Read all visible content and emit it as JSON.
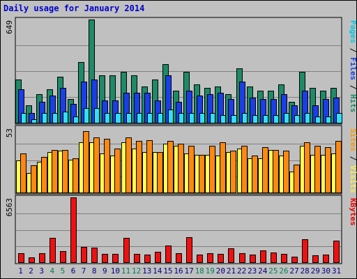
{
  "chart_data": {
    "title": "Daily usage for January 2014",
    "categories": [
      "1",
      "2",
      "3",
      "4",
      "5",
      "6",
      "7",
      "8",
      "9",
      "10",
      "11",
      "12",
      "13",
      "14",
      "15",
      "16",
      "17",
      "18",
      "19",
      "20",
      "21",
      "22",
      "23",
      "24",
      "25",
      "26",
      "27",
      "28",
      "29",
      "30",
      "31"
    ],
    "weekend_days": [
      "4",
      "5",
      "11",
      "12",
      "18",
      "19",
      "25",
      "26"
    ],
    "panels": [
      {
        "id": "top",
        "type": "bar",
        "max_label": "649",
        "ymax": 649,
        "right_label_parts": [
          {
            "text": "Pages",
            "color": "#00c8e0"
          },
          {
            "text": " / ",
            "color": "#000000"
          },
          {
            "text": "Files",
            "color": "#1a3ee8"
          },
          {
            "text": " / ",
            "color": "#000000"
          },
          {
            "text": "Hits",
            "color": "#1e8a68"
          }
        ],
        "series": [
          {
            "name": "Hits",
            "color": "#1e8a68",
            "values": [
              270,
              110,
              180,
              210,
              290,
              150,
              380,
              649,
              300,
              300,
              320,
              300,
              230,
              270,
              370,
              200,
              320,
              240,
              220,
              230,
              180,
              340,
              230,
              200,
              200,
              240,
              130,
              320,
              220,
              200,
              220
            ]
          },
          {
            "name": "Files",
            "color": "#1a3ee8",
            "values": [
              210,
              60,
              130,
              170,
              220,
              120,
              260,
              270,
              140,
              140,
              190,
              190,
              190,
              140,
              300,
              130,
              200,
              170,
              180,
              190,
              150,
              260,
              160,
              150,
              150,
              180,
              110,
              200,
              110,
              150,
              160
            ]
          },
          {
            "name": "Pages",
            "color": "#33ddff",
            "values": [
              60,
              20,
              60,
              60,
              70,
              40,
              90,
              90,
              60,
              60,
              60,
              60,
              60,
              60,
              85,
              60,
              60,
              60,
              60,
              50,
              50,
              60,
              50,
              50,
              50,
              60,
              50,
              60,
              40,
              40,
              60
            ]
          }
        ]
      },
      {
        "id": "middle",
        "type": "bar",
        "max_label": "53",
        "ymax": 53,
        "right_label_parts": [
          {
            "text": "Sites",
            "color": "#ff9900"
          },
          {
            "text": " / ",
            "color": "#000000"
          },
          {
            "text": "Visits",
            "color": "#ffee44"
          }
        ],
        "series": [
          {
            "name": "Visits",
            "color": "#ffff55",
            "values": [
              26,
              16,
              25,
              33,
              34,
              27,
              41,
              41,
              32,
              30,
              41,
              36,
              33,
              33,
              40,
              38,
              32,
              31,
              31,
              30,
              33,
              36,
              28,
              28,
              35,
              30,
              17,
              38,
              31,
              31,
              32
            ]
          },
          {
            "name": "Sites",
            "color": "#ff8811",
            "values": [
              32,
              22,
              29,
              35,
              35,
              28,
              50,
              45,
              44,
              36,
              45,
              42,
              43,
              33,
              42,
              40,
              38,
              31,
              38,
              41,
              34,
              38,
              30,
              37,
              35,
              34,
              23,
              41,
              38,
              37,
              42
            ]
          }
        ]
      },
      {
        "id": "bottom",
        "type": "bar",
        "max_label": "6563",
        "ymax": 6563,
        "right_label_parts": [
          {
            "text": "KBytes",
            "color": "#ee0000"
          }
        ],
        "series": [
          {
            "name": "KBytes",
            "color": "#ee1111",
            "values": [
              920,
              460,
              950,
              2450,
              1100,
              6563,
              1550,
              1500,
              840,
              840,
              2500,
              880,
              790,
              1050,
              1700,
              940,
              2550,
              790,
              950,
              870,
              1400,
              920,
              800,
              1200,
              1000,
              860,
              560,
              2350,
              720,
              760,
              2200
            ]
          }
        ]
      }
    ],
    "colors": {
      "background": "#c0c0c0",
      "title": "#0000cc",
      "weekday_label": "#000080",
      "weekend_label": "#00805c"
    }
  }
}
